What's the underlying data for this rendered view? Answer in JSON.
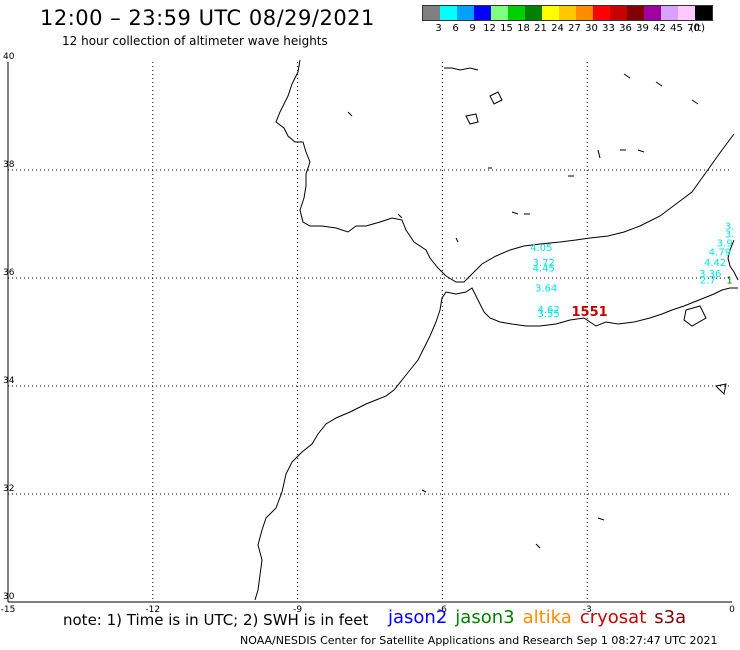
{
  "header": {
    "title": "12:00 – 23:59 UTC 08/29/2021",
    "subtitle": "12 hour collection of altimeter wave heights"
  },
  "legend": {
    "unit": "(ft)",
    "swatches": [
      {
        "color": "#808080",
        "label": "3"
      },
      {
        "color": "#00ffff",
        "label": "6"
      },
      {
        "color": "#00a0ff",
        "label": "9"
      },
      {
        "color": "#0000ff",
        "label": "12"
      },
      {
        "color": "#80ff80",
        "label": "15"
      },
      {
        "color": "#00d000",
        "label": "18"
      },
      {
        "color": "#008000",
        "label": "21"
      },
      {
        "color": "#ffff00",
        "label": "24"
      },
      {
        "color": "#ffc800",
        "label": "27"
      },
      {
        "color": "#ff8c00",
        "label": "30"
      },
      {
        "color": "#ff0000",
        "label": "33"
      },
      {
        "color": "#c80000",
        "label": "36"
      },
      {
        "color": "#800000",
        "label": "39"
      },
      {
        "color": "#a000a0",
        "label": "42"
      },
      {
        "color": "#d8a0ff",
        "label": "45"
      },
      {
        "color": "#ffc8ff",
        "label": "70"
      },
      {
        "color": "#000000",
        "label": ""
      }
    ]
  },
  "axes": {
    "x_ticks": [
      "-15",
      "-12",
      "-9",
      "-6",
      "-3",
      "0"
    ],
    "y_ticks": [
      "40",
      "38",
      "36",
      "34",
      "32",
      "30"
    ]
  },
  "observations": [
    {
      "sat": "jason3",
      "lon": -0.05,
      "lat": 35.9,
      "text": "1",
      "color": "#008000"
    },
    {
      "sat": "cryosat",
      "lon": -2.95,
      "lat": 35.3,
      "text": "1551",
      "color": "#c80000"
    },
    {
      "sat": "s3a",
      "lon": -3.95,
      "lat": 36.5,
      "text": "4.05",
      "color": "#00e5e5"
    },
    {
      "sat": "s3a",
      "lon": -3.9,
      "lat": 36.22,
      "text": "3.72",
      "color": "#00e5e5"
    },
    {
      "sat": "s3a",
      "lon": -3.9,
      "lat": 36.12,
      "text": "4.45",
      "color": "#00e5e5"
    },
    {
      "sat": "s3a",
      "lon": -3.85,
      "lat": 35.75,
      "text": "3.64",
      "color": "#00e5e5"
    },
    {
      "sat": "s3a",
      "lon": -3.8,
      "lat": 35.35,
      "text": "4.62",
      "color": "#00e5e5"
    },
    {
      "sat": "s3a",
      "lon": -3.8,
      "lat": 35.28,
      "text": "3.55",
      "color": "#00e5e5"
    },
    {
      "sat": "s3a",
      "lon": -0.05,
      "lat": 36.9,
      "text": "3.",
      "color": "#00e5e5"
    },
    {
      "sat": "s3a",
      "lon": -0.05,
      "lat": 36.75,
      "text": "3.",
      "color": "#00e5e5"
    },
    {
      "sat": "s3a",
      "lon": -0.15,
      "lat": 36.58,
      "text": "3.9",
      "color": "#00e5e5"
    },
    {
      "sat": "s3a",
      "lon": -0.25,
      "lat": 36.42,
      "text": "4.79",
      "color": "#00e5e5"
    },
    {
      "sat": "s3a",
      "lon": -0.35,
      "lat": 36.22,
      "text": "4.42",
      "color": "#00e5e5"
    },
    {
      "sat": "s3a",
      "lon": -0.45,
      "lat": 36.02,
      "text": "3.36",
      "color": "#00e5e5"
    },
    {
      "sat": "s3a",
      "lon": -0.5,
      "lat": 35.9,
      "text": "2.7",
      "color": "#00e5e5"
    }
  ],
  "note": "note: 1) Time is in UTC; 2) SWH is in feet",
  "satellites": [
    {
      "label": "jason2",
      "color": "#0000ff"
    },
    {
      "label": "jason3",
      "color": "#008000"
    },
    {
      "label": "altika",
      "color": "#ff8c00"
    },
    {
      "label": "cryosat",
      "color": "#c80000"
    },
    {
      "label": "s3a",
      "color": "#800000"
    }
  ],
  "footer": "NOAA/NESDIS Center for Satellite Applications and Research    Sep  1 08:27:47 UTC 2021"
}
